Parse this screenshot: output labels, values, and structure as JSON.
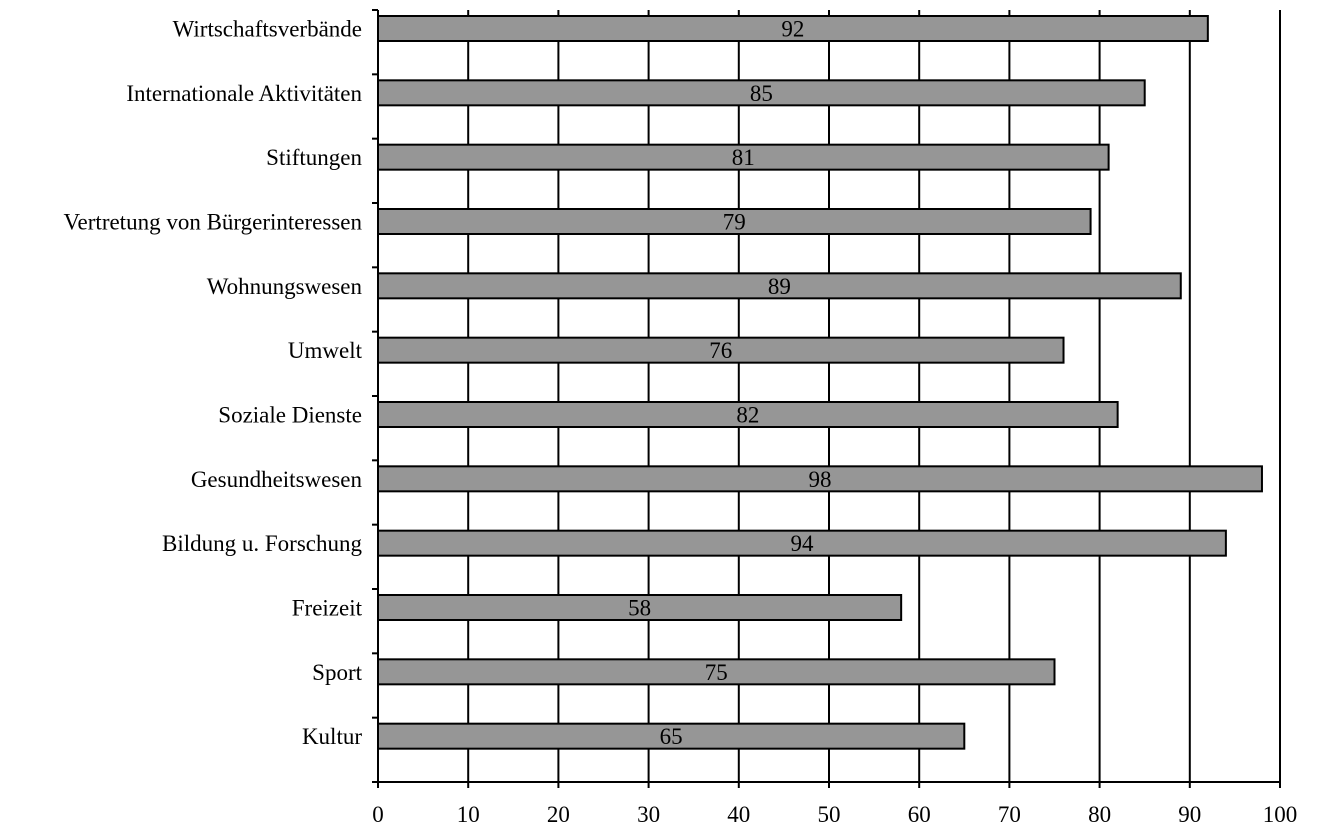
{
  "chart_data": {
    "type": "bar",
    "orientation": "horizontal",
    "title": "",
    "xlabel": "",
    "ylabel": "",
    "categories": [
      "Wirtschaftsverbände",
      "Internationale Aktivitäten",
      "Stiftungen",
      "Vertretung von Bürgerinteressen",
      "Wohnungswesen",
      "Umwelt",
      "Soziale Dienste",
      "Gesundheitswesen",
      "Bildung u. Forschung",
      "Freizeit",
      "Sport",
      "Kultur"
    ],
    "values": [
      92,
      85,
      81,
      79,
      89,
      76,
      82,
      98,
      94,
      58,
      75,
      65
    ],
    "xlim": [
      0,
      100
    ],
    "xticks": [
      0,
      10,
      20,
      30,
      40,
      50,
      60,
      70,
      80,
      90,
      100
    ],
    "vertical_gridlines": true,
    "legend": "none",
    "colors": {
      "bar_fill": "#969696",
      "bar_stroke": "#000000",
      "grid": "#000000",
      "axis": "#000000"
    }
  }
}
